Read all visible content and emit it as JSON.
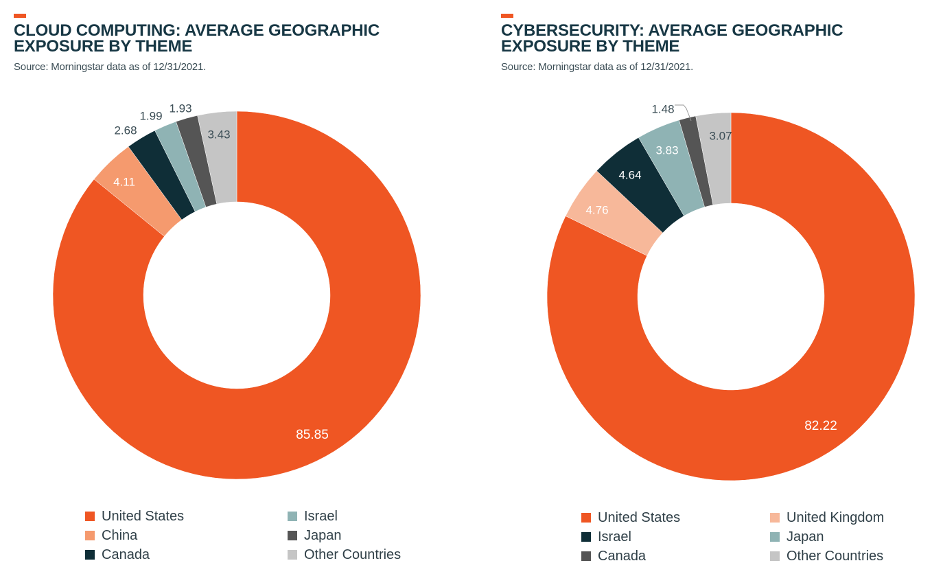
{
  "colors": {
    "accent": "#ef5623",
    "title": "#173744",
    "background": "#ffffff"
  },
  "chart_data": [
    {
      "type": "pie",
      "variant": "donut",
      "title": "CLOUD COMPUTING: AVERAGE GEOGRAPHIC EXPOSURE BY THEME",
      "title_lines": [
        "CLOUD COMPUTING: AVERAGE GEOGRAPHIC",
        "EXPOSURE BY THEME"
      ],
      "subtitle": "Source: Morningstar data as of 12/31/2021.",
      "legend_position": "bottom",
      "series": [
        {
          "name": "United States",
          "value": 85.85,
          "label": "85.85",
          "color": "#ef5623"
        },
        {
          "name": "China",
          "value": 4.11,
          "label": "4.11",
          "color": "#f59a6e"
        },
        {
          "name": "Canada",
          "value": 2.68,
          "label": "2.68",
          "color": "#0f2e37"
        },
        {
          "name": "Israel",
          "value": 1.99,
          "label": "1.99",
          "color": "#8fb3b4"
        },
        {
          "name": "Japan",
          "value": 1.93,
          "label": "1.93",
          "color": "#555555"
        },
        {
          "name": "Other Countries",
          "value": 3.43,
          "label": "3.43",
          "color": "#c5c5c5"
        }
      ],
      "slice_order": [
        "United States",
        "China",
        "Canada",
        "Israel",
        "Japan",
        "Other Countries"
      ],
      "legend_order": [
        "United States",
        "China",
        "Canada",
        "Israel",
        "Japan",
        "Other Countries"
      ]
    },
    {
      "type": "pie",
      "variant": "donut",
      "title": "CYBERSECURITY: AVERAGE GEOGRAPHIC EXPOSURE BY THEME",
      "title_lines": [
        "CYBERSECURITY: AVERAGE GEOGRAPHIC",
        "EXPOSURE BY THEME"
      ],
      "subtitle": "Source: Morningstar data as of 12/31/2021.",
      "legend_position": "bottom",
      "series": [
        {
          "name": "United States",
          "value": 82.22,
          "label": "82.22",
          "color": "#ef5623"
        },
        {
          "name": "United Kingdom",
          "value": 4.76,
          "label": "4.76",
          "color": "#f7b89a"
        },
        {
          "name": "Israel",
          "value": 4.64,
          "label": "4.64",
          "color": "#0f2e37"
        },
        {
          "name": "Japan",
          "value": 3.83,
          "label": "3.83",
          "color": "#8fb3b4"
        },
        {
          "name": "Canada",
          "value": 1.48,
          "label": "1.48",
          "color": "#555555"
        },
        {
          "name": "Other Countries",
          "value": 3.07,
          "label": "3.07",
          "color": "#c5c5c5"
        }
      ],
      "slice_order": [
        "United States",
        "United Kingdom",
        "Israel",
        "Japan",
        "Canada",
        "Other Countries"
      ],
      "legend_order": [
        "United States",
        "United Kingdom",
        "Israel",
        "Japan",
        "Canada",
        "Other Countries"
      ]
    }
  ]
}
